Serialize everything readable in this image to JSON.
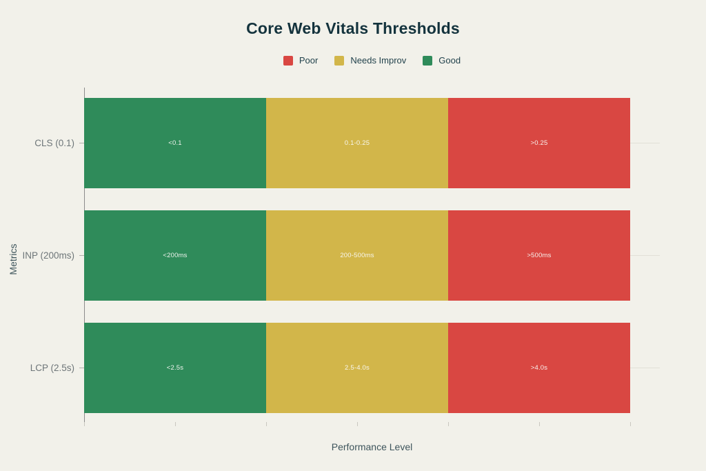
{
  "title": "Core Web Vitals Thresholds",
  "colors": {
    "background": "#f2f1ea",
    "title_text": "#14333d",
    "axis_title_text": "#3d545b",
    "category_label_text": "#6d7578",
    "segment_label_text": "#faf9f4",
    "poor": "#d94742",
    "needs_improv": "#d2b64a",
    "good": "#2f8b5a",
    "gridline": "#e2e0d7",
    "spine": "#8b8b8b"
  },
  "legend": [
    {
      "label": "Poor",
      "color": "#d94742"
    },
    {
      "label": "Needs Improv",
      "color": "#d2b64a"
    },
    {
      "label": "Good",
      "color": "#2f8b5a"
    }
  ],
  "chart_data": {
    "type": "bar",
    "orientation": "horizontal",
    "stacked": true,
    "title": "Core Web Vitals Thresholds",
    "xlabel": "Performance Level",
    "ylabel": "Metrics",
    "categories": [
      "CLS (0.1)",
      "INP (200ms)",
      "LCP (2.5s)"
    ],
    "series": [
      {
        "name": "Good",
        "color": "#2f8b5a",
        "values": [
          1,
          1,
          1
        ],
        "labels": [
          "<0.1",
          "<200ms",
          "<2.5s"
        ]
      },
      {
        "name": "Needs Improv",
        "color": "#d2b64a",
        "values": [
          1,
          1,
          1
        ],
        "labels": [
          "0.1-0.25",
          "200-500ms",
          "2.5-4.0s"
        ]
      },
      {
        "name": "Poor",
        "color": "#d94742",
        "values": [
          1,
          1,
          1
        ],
        "labels": [
          ">0.25",
          ">500ms",
          ">4.0s"
        ]
      }
    ],
    "xlim": [
      0,
      3.16
    ],
    "x_ticks": [
      0,
      0.5,
      1.0,
      1.5,
      2.0,
      2.5,
      3.0
    ],
    "x_tick_labels_visible": false,
    "grid": "horizontal-category-lines",
    "legend_position": "top-center"
  }
}
